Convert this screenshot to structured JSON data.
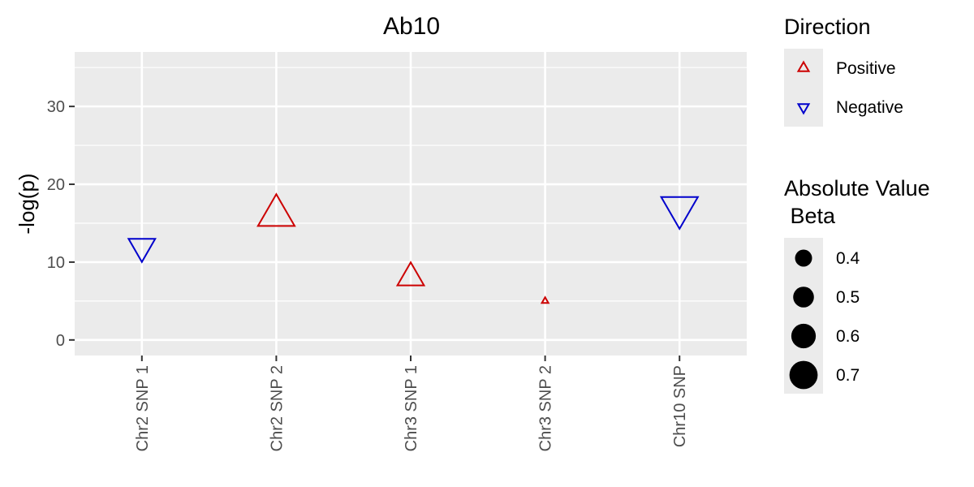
{
  "chart_data": {
    "type": "scatter",
    "title": "Ab10",
    "xlabel": "",
    "ylabel": "-log(p)",
    "categories": [
      "Chr2 SNP 1",
      "Chr2 SNP 2",
      "Chr3 SNP 1",
      "Chr3 SNP 2",
      "Chr10 SNP"
    ],
    "ylim": [
      -2,
      37
    ],
    "yticks": [
      0,
      10,
      20,
      30
    ],
    "ytick_labels": [
      "0",
      "10",
      "20",
      "30"
    ],
    "grid": true,
    "points": [
      {
        "category": "Chr2 SNP 1",
        "y": 12,
        "direction": "Negative",
        "beta": 0.6
      },
      {
        "category": "Chr2 SNP 2",
        "y": 16,
        "direction": "Positive",
        "beta": 0.7
      },
      {
        "category": "Chr3 SNP 1",
        "y": 8,
        "direction": "Positive",
        "beta": 0.6
      },
      {
        "category": "Chr3 SNP 2",
        "y": 5,
        "direction": "Positive",
        "beta": 0.4
      },
      {
        "category": "Chr10 SNP",
        "y": 17,
        "direction": "Negative",
        "beta": 0.7
      }
    ],
    "colors": {
      "Positive": "#cc0000",
      "Negative": "#0000cc",
      "panel": "#ebebeb",
      "grid": "#ffffff",
      "legend_key": "#000000"
    },
    "legend": {
      "placement": "right",
      "direction": {
        "title": "Direction",
        "entries": [
          {
            "label": "Positive",
            "shape": "triangle-up"
          },
          {
            "label": "Negative",
            "shape": "triangle-down"
          }
        ]
      },
      "size": {
        "title_line1": "Absolute Value",
        "title_line2": " Beta",
        "values": [
          0.4,
          0.5,
          0.6,
          0.7
        ],
        "labels": [
          "0.4",
          "0.5",
          "0.6",
          "0.7"
        ]
      }
    }
  }
}
